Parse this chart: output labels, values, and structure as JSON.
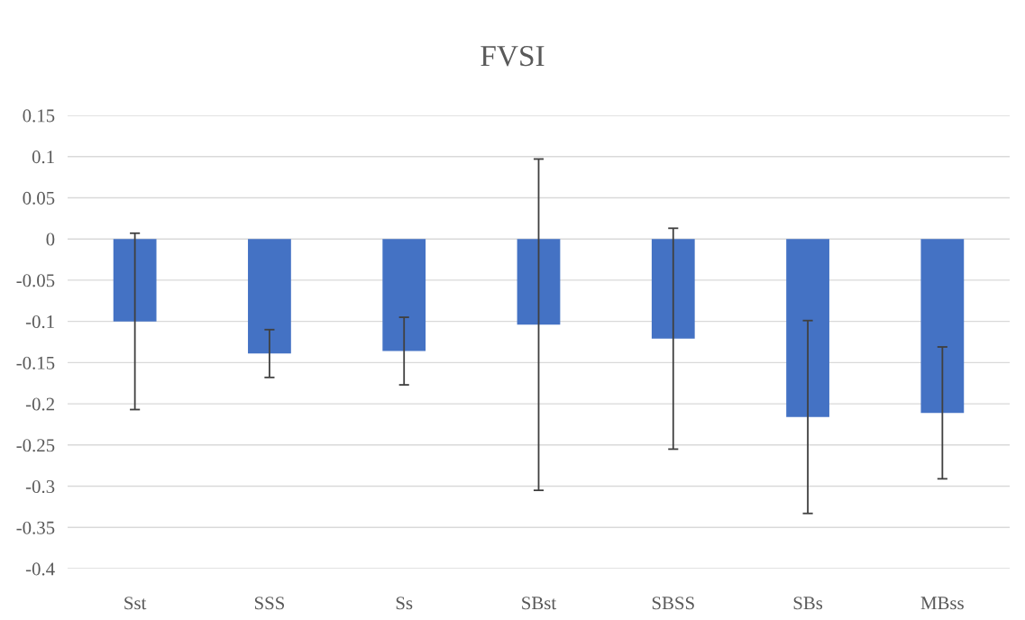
{
  "chart_data": {
    "type": "bar",
    "title": "FVSI",
    "categories": [
      "Sst",
      "SSS",
      "Ss",
      "SBst",
      "SBSS",
      "SBs",
      "MBss"
    ],
    "values": [
      -0.1,
      -0.139,
      -0.136,
      -0.104,
      -0.121,
      -0.216,
      -0.211
    ],
    "errors": [
      0.107,
      0.029,
      0.041,
      0.201,
      0.134,
      0.117,
      0.08
    ],
    "color": "#4472c4",
    "ylim": [
      -0.4,
      0.15
    ],
    "yticks": [
      -0.4,
      -0.35,
      -0.3,
      -0.25,
      -0.2,
      -0.15,
      -0.1,
      -0.05,
      0,
      0.05,
      0.1,
      0.15
    ],
    "grid": "y"
  }
}
